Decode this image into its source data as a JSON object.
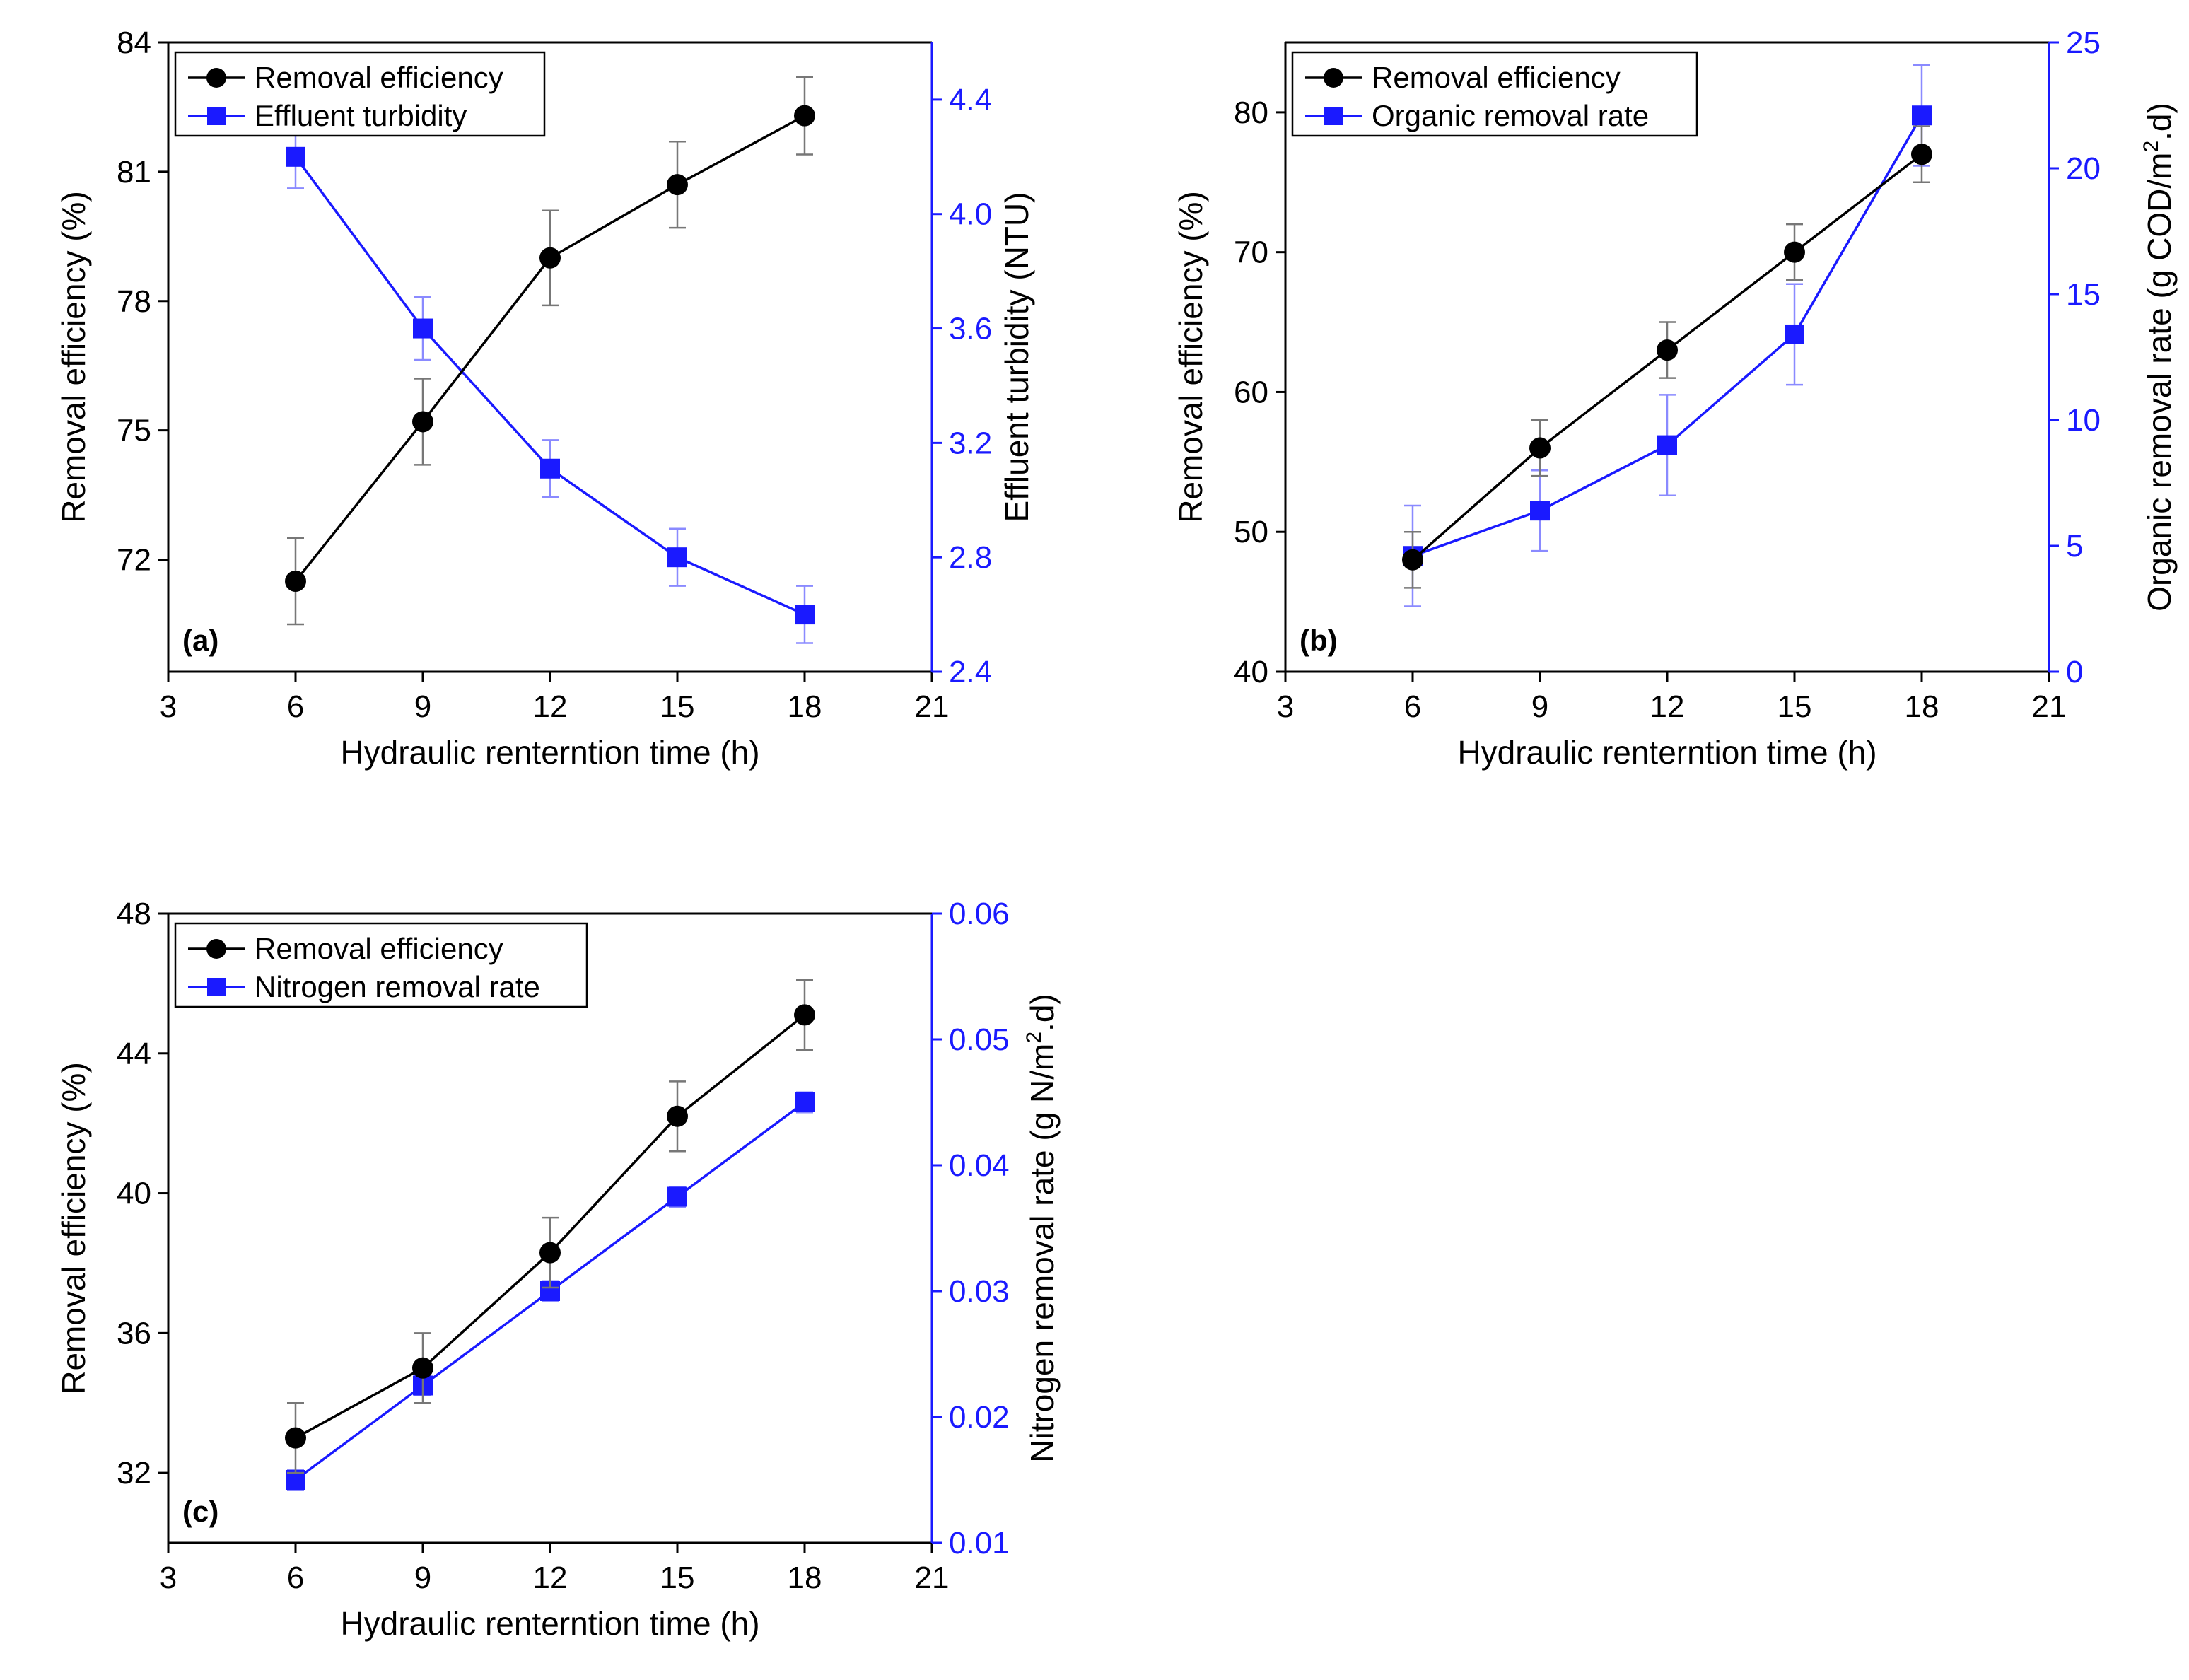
{
  "chart_data": [
    {
      "type": "line",
      "panel_label": "(a)",
      "xlabel": "Hydraulic renterntion time (h)",
      "x": [
        6,
        9,
        12,
        15,
        18
      ],
      "xlim": [
        3,
        21
      ],
      "xticks": [
        3,
        6,
        9,
        12,
        15,
        18,
        21
      ],
      "ylabel_left": "Removal efficiency (%)",
      "ylim_left": [
        69.4,
        84
      ],
      "yticks_left": [
        72,
        75,
        78,
        81,
        84
      ],
      "ylabel_right": "Effluent turbidity (NTU)",
      "ylim_right": [
        2.4,
        4.6
      ],
      "yticks_right": [
        "2.4",
        "2.8",
        "3.2",
        "3.6",
        "4.0",
        "4.4"
      ],
      "legend_position": "top-left",
      "series": [
        {
          "name": "Removal efficiency",
          "axis": "left",
          "color": "#000000",
          "marker": "circle",
          "values": [
            71.5,
            75.2,
            79.0,
            80.7,
            82.3
          ],
          "errors": [
            1.0,
            1.0,
            1.1,
            1.0,
            0.9
          ]
        },
        {
          "name": "Effluent turbidity",
          "axis": "right",
          "color": "#1a1aff",
          "marker": "square",
          "values": [
            4.2,
            3.6,
            3.11,
            2.8,
            2.6
          ],
          "errors": [
            0.11,
            0.11,
            0.1,
            0.1,
            0.1
          ]
        }
      ]
    },
    {
      "type": "line",
      "panel_label": "(b)",
      "xlabel": "Hydraulic renterntion time (h)",
      "x": [
        6,
        9,
        12,
        15,
        18
      ],
      "xlim": [
        3,
        21
      ],
      "xticks": [
        3,
        6,
        9,
        12,
        15,
        18,
        21
      ],
      "ylabel_left": "Removal efficiency (%)",
      "ylim_left": [
        40,
        85
      ],
      "yticks_left": [
        40,
        50,
        60,
        70,
        80
      ],
      "ylabel_right": "Organic removal rate (g COD/m",
      "ylabel_right_sup": "2",
      "ylabel_right_tail": ".d)",
      "ylim_right": [
        0,
        25
      ],
      "yticks_right": [
        "0",
        "5",
        "10",
        "15",
        "20",
        "25"
      ],
      "legend_position": "top-left",
      "series": [
        {
          "name": "Removal efficiency",
          "axis": "left",
          "color": "#000000",
          "marker": "circle",
          "values": [
            48,
            56,
            63,
            70,
            77
          ],
          "errors": [
            2,
            2,
            2,
            2,
            2
          ]
        },
        {
          "name": "Organic removal rate",
          "axis": "right",
          "color": "#1a1aff",
          "marker": "square",
          "values": [
            4.6,
            6.4,
            9.0,
            13.4,
            22.1
          ],
          "errors": [
            2.0,
            1.6,
            2.0,
            2.0,
            2.0
          ]
        }
      ]
    },
    {
      "type": "line",
      "panel_label": "(c)",
      "xlabel": "Hydraulic renterntion time (h)",
      "x": [
        6,
        9,
        12,
        15,
        18
      ],
      "xlim": [
        3,
        21
      ],
      "xticks": [
        3,
        6,
        9,
        12,
        15,
        18,
        21
      ],
      "ylabel_left": "Removal efficiency (%)",
      "ylim_left": [
        30,
        48
      ],
      "yticks_left": [
        32,
        36,
        40,
        44,
        48
      ],
      "ylabel_right": "Nitrogen removal rate (g N/m",
      "ylabel_right_sup": "2",
      "ylabel_right_tail": ".d)",
      "ylim_right": [
        0.01,
        0.06
      ],
      "yticks_right": [
        "0.01",
        "0.02",
        "0.03",
        "0.04",
        "0.05",
        "0.06"
      ],
      "legend_position": "top-left",
      "series": [
        {
          "name": "Removal efficiency",
          "axis": "left",
          "color": "#000000",
          "marker": "circle",
          "values": [
            33,
            35,
            38.3,
            42.2,
            45.1
          ],
          "errors": [
            1.0,
            1.0,
            1.0,
            1.0,
            1.0
          ]
        },
        {
          "name": "Nitrogen removal rate",
          "axis": "right",
          "color": "#1a1aff",
          "marker": "square",
          "values": [
            0.015,
            0.0225,
            0.03,
            0.0375,
            0.045
          ],
          "errors": [
            0.0008,
            0.0008,
            0.0008,
            0.0008,
            0.0008
          ]
        }
      ]
    }
  ]
}
